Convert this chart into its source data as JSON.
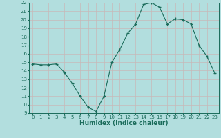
{
  "x": [
    0,
    1,
    2,
    3,
    4,
    5,
    6,
    7,
    8,
    9,
    10,
    11,
    12,
    13,
    14,
    15,
    16,
    17,
    18,
    19,
    20,
    21,
    22,
    23
  ],
  "y": [
    14.8,
    14.7,
    14.7,
    14.8,
    13.8,
    12.5,
    11.0,
    9.7,
    9.2,
    11.0,
    15.0,
    16.5,
    18.4,
    19.5,
    21.8,
    22.0,
    21.5,
    19.5,
    20.1,
    20.0,
    19.5,
    17.0,
    15.7,
    13.7
  ],
  "ylim": [
    9,
    22
  ],
  "xlim": [
    -0.5,
    23.5
  ],
  "yticks": [
    9,
    10,
    11,
    12,
    13,
    14,
    15,
    16,
    17,
    18,
    19,
    20,
    21,
    22
  ],
  "xticks": [
    0,
    1,
    2,
    3,
    4,
    5,
    6,
    7,
    8,
    9,
    10,
    11,
    12,
    13,
    14,
    15,
    16,
    17,
    18,
    19,
    20,
    21,
    22,
    23
  ],
  "xlabel": "Humidex (Indice chaleur)",
  "line_color": "#1a6b5a",
  "marker_color": "#1a6b5a",
  "bg_color": "#b2dede",
  "grid_color": "#c8b8b8",
  "tick_fontsize": 5.0,
  "xlabel_fontsize": 6.5,
  "linewidth": 0.8,
  "markersize": 3.5
}
